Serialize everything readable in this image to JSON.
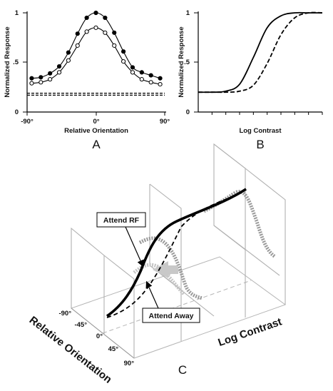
{
  "chart_data": [
    {
      "panel": "A",
      "type": "line",
      "xlabel": "Relative Orientation",
      "ylabel": "Normalized Response",
      "x_ticks": [
        "-90°",
        "0°",
        "90°"
      ],
      "y_ticks": [
        "0",
        ".5",
        "1"
      ],
      "xlim": [
        -90,
        90
      ],
      "ylim": [
        0,
        1
      ],
      "series": [
        {
          "style": "solid with filled circles",
          "points": [
            [
              -84,
              0.34
            ],
            [
              -72,
              0.35
            ],
            [
              -60,
              0.39
            ],
            [
              -48,
              0.46
            ],
            [
              -36,
              0.6
            ],
            [
              -24,
              0.79
            ],
            [
              -12,
              0.95
            ],
            [
              0,
              1.0
            ],
            [
              12,
              0.95
            ],
            [
              24,
              0.8
            ],
            [
              36,
              0.61
            ],
            [
              48,
              0.45
            ],
            [
              60,
              0.4
            ],
            [
              72,
              0.37
            ],
            [
              84,
              0.34
            ]
          ]
        },
        {
          "style": "solid with open circles",
          "points": [
            [
              -84,
              0.29
            ],
            [
              -72,
              0.3
            ],
            [
              -60,
              0.33
            ],
            [
              -48,
              0.4
            ],
            [
              -36,
              0.52
            ],
            [
              -24,
              0.67
            ],
            [
              -12,
              0.81
            ],
            [
              0,
              0.85
            ],
            [
              12,
              0.8
            ],
            [
              24,
              0.67
            ],
            [
              36,
              0.51
            ],
            [
              48,
              0.4
            ],
            [
              60,
              0.33
            ],
            [
              72,
              0.3
            ],
            [
              84,
              0.28
            ]
          ]
        },
        {
          "style": "dashed",
          "points": [
            [
              -90,
              0.19
            ],
            [
              90,
              0.19
            ]
          ]
        },
        {
          "style": "dashed",
          "points": [
            [
              -90,
              0.17
            ],
            [
              90,
              0.17
            ]
          ]
        }
      ]
    },
    {
      "panel": "B",
      "type": "line",
      "xlabel": "Log Contrast",
      "ylabel": "Normalized Response",
      "y_ticks": [
        "0",
        ".5",
        "1"
      ],
      "ylim": [
        0,
        1
      ],
      "series": [
        {
          "style": "solid",
          "points": [
            [
              0,
              0.2
            ],
            [
              1,
              0.2
            ],
            [
              2,
              0.21
            ],
            [
              3,
              0.28
            ],
            [
              4,
              0.55
            ],
            [
              5,
              0.85
            ],
            [
              6,
              0.97
            ],
            [
              7,
              1.0
            ],
            [
              8,
              1.0
            ],
            [
              9,
              1.0
            ]
          ]
        },
        {
          "style": "dashed",
          "points": [
            [
              0,
              0.2
            ],
            [
              1,
              0.2
            ],
            [
              2,
              0.2
            ],
            [
              3,
              0.21
            ],
            [
              4,
              0.27
            ],
            [
              5,
              0.49
            ],
            [
              6,
              0.78
            ],
            [
              7,
              0.95
            ],
            [
              8,
              1.0
            ],
            [
              9,
              1.0
            ]
          ]
        }
      ]
    },
    {
      "panel": "C",
      "type": "line",
      "xlabel": "Log Contrast",
      "ylabel": "Relative Orientation",
      "y_ticks": [
        "-90°",
        "-45°",
        "0°",
        "45°",
        "90°"
      ],
      "annotations": [
        "Attend RF",
        "Attend Away"
      ]
    }
  ],
  "panel_labels": [
    "A",
    "B",
    "C"
  ]
}
